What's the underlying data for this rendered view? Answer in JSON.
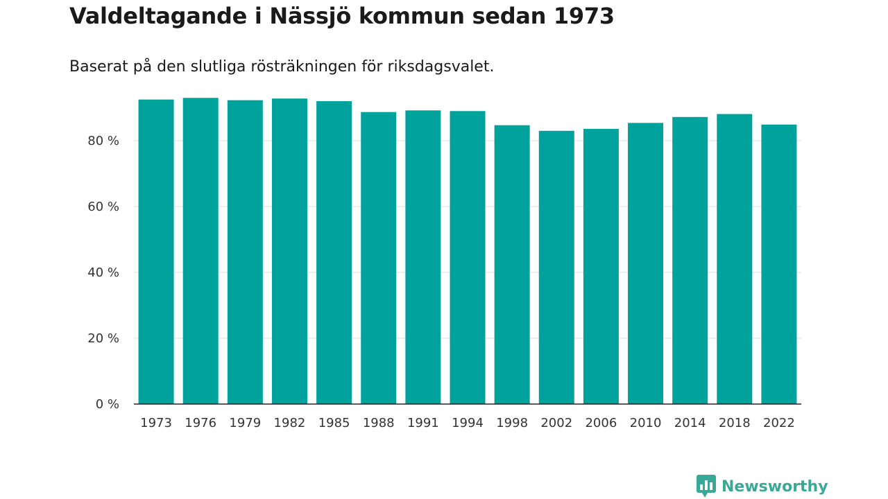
{
  "title": "Valdeltagande i Nässjö kommun sedan 1973",
  "subtitle": "Baserat på den slutliga rösträkningen för riksdagsvalet.",
  "brand": {
    "name": "Newsworthy",
    "color": "#3aa897",
    "icon": "bar-chart-speech-bubble-icon"
  },
  "colors": {
    "bar": "#00a39b",
    "grid": "#dddddd",
    "axis": "#222222"
  },
  "chart_data": {
    "type": "bar",
    "title": "Valdeltagande i Nässjö kommun sedan 1973",
    "subtitle": "Baserat på den slutliga rösträkningen för riksdagsvalet.",
    "xlabel": "",
    "ylabel": "",
    "categories": [
      "1973",
      "1976",
      "1979",
      "1982",
      "1985",
      "1988",
      "1991",
      "1994",
      "1998",
      "2002",
      "2006",
      "2010",
      "2014",
      "2018",
      "2022"
    ],
    "values": [
      92.5,
      93.0,
      92.3,
      92.8,
      92.0,
      88.7,
      89.2,
      89.0,
      84.7,
      83.0,
      83.6,
      85.4,
      87.2,
      88.1,
      84.9
    ],
    "ylim": [
      0,
      100
    ],
    "yticks": [
      0,
      20,
      40,
      60,
      80
    ],
    "ytick_labels": [
      "0 %",
      "20 %",
      "40 %",
      "60 %",
      "80 %"
    ],
    "grid": true,
    "legend": "none"
  }
}
